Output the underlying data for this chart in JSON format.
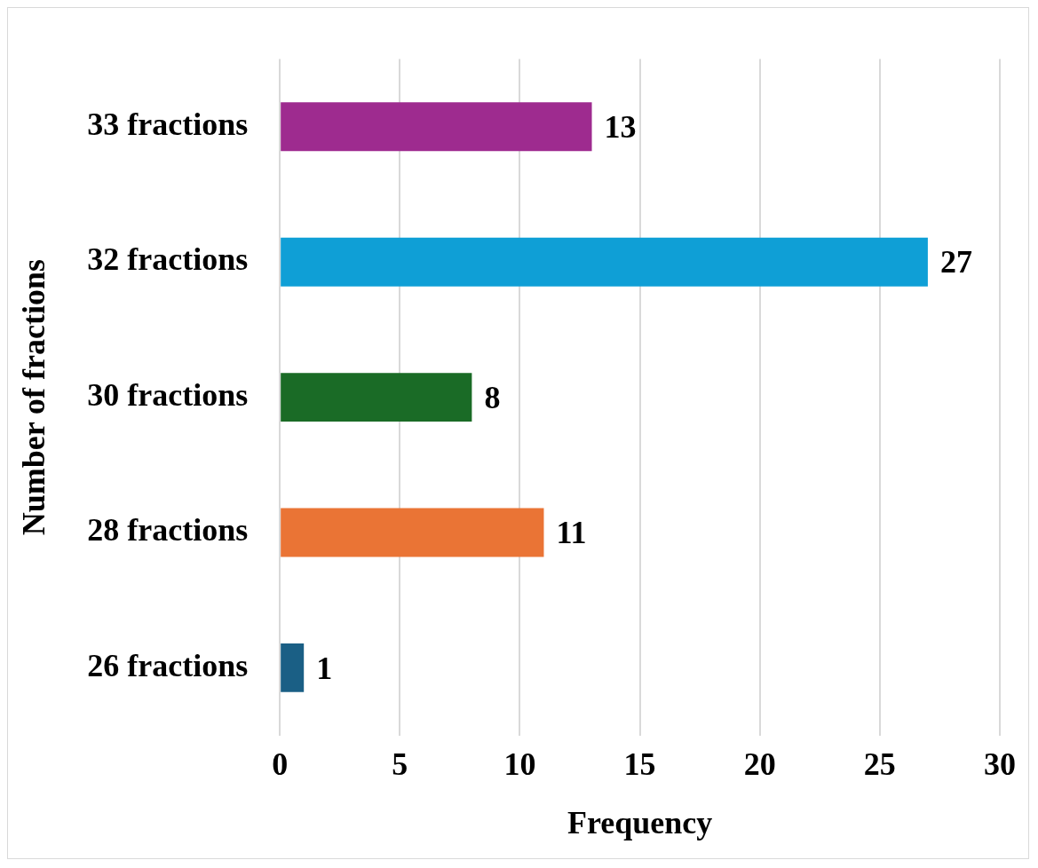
{
  "chart_data": {
    "type": "bar",
    "orientation": "horizontal",
    "xlabel": "Frequency",
    "ylabel": "Number of fractions",
    "categories": [
      "33 fractions",
      "32 fractions",
      "30 fractions",
      "28 fractions",
      "26 fractions"
    ],
    "values": [
      13,
      27,
      8,
      11,
      1
    ],
    "colors": [
      "#9e2b8f",
      "#0f9fd6",
      "#1a6b26",
      "#ea7435",
      "#1a5f85"
    ],
    "xlim": [
      0,
      30
    ],
    "xticks": [
      0,
      5,
      10,
      15,
      20,
      25,
      30
    ],
    "grid": "x",
    "data_labels": true,
    "legend": false
  }
}
